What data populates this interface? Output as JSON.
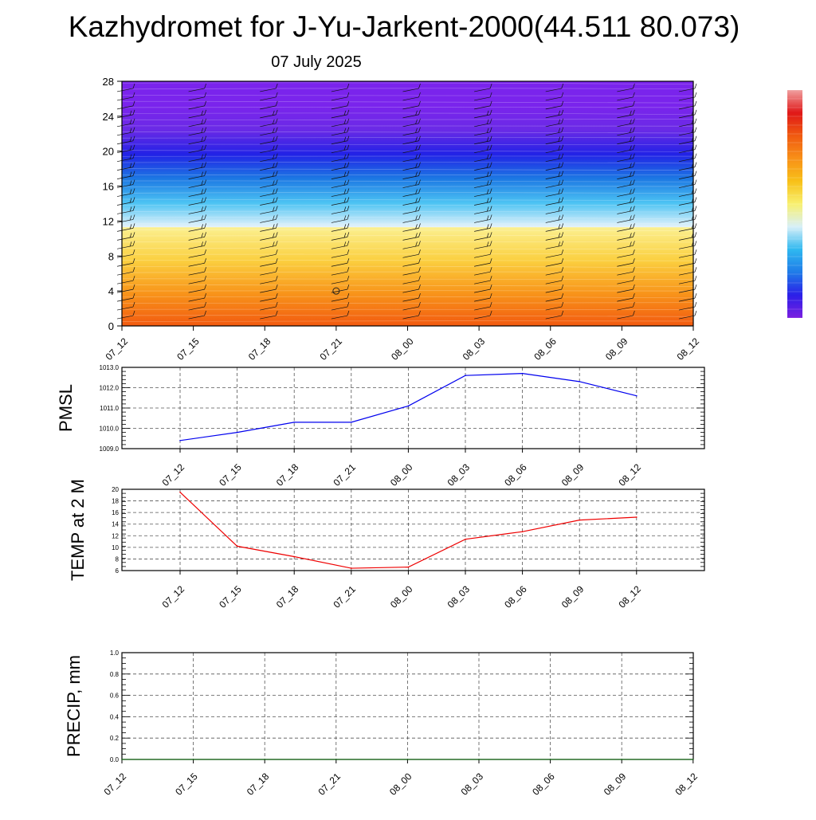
{
  "title": "Kazhydromet for J-Yu-Jarkent-2000(44.511 80.073)",
  "subtitle": "07 July 2025",
  "time_labels": [
    "07_12",
    "07_15",
    "07_18",
    "07_21",
    "08_00",
    "08_03",
    "08_06",
    "08_09",
    "08_12"
  ],
  "colors": {
    "pmsl_line": "#0000ee",
    "temp_line": "#ee0000",
    "precip_line": "#1a6b1a",
    "grid": "#555555",
    "colorbar_stops": [
      "#7b1fe0",
      "#2b1fe8",
      "#1f7be8",
      "#2fb8f0",
      "#d8f0f8",
      "#f8f070",
      "#f8c018",
      "#f89018",
      "#f05a10",
      "#e01818",
      "#f0a0a0"
    ]
  },
  "chart_data": [
    {
      "type": "heatmap",
      "name": "vertical-profile",
      "x": [
        "07_12",
        "07_15",
        "07_18",
        "07_21",
        "08_00",
        "08_03",
        "08_06",
        "08_09",
        "08_12"
      ],
      "ylim": [
        0,
        28
      ],
      "yticks": [
        0,
        4,
        8,
        12,
        16,
        20,
        24,
        28
      ],
      "bands": [
        {
          "from": 0,
          "to": 11.3,
          "colors": [
            "#f25a10",
            "#f8951a",
            "#fbd040",
            "#fbf090"
          ]
        },
        {
          "from": 11.3,
          "to": 28,
          "colors": [
            "#e6f3fb",
            "#4cc3f3",
            "#1c78e3",
            "#2222e6",
            "#6a2ae6",
            "#7a24ec",
            "#7a24ec"
          ]
        }
      ],
      "annotation": {
        "symbol": "circle",
        "x": "07_21",
        "y": 4
      },
      "wind_barbs": true,
      "colorbar": true
    },
    {
      "type": "line",
      "name": "pmsl",
      "ylabel": "PMSL",
      "categories": [
        "07_12",
        "07_15",
        "07_18",
        "07_21",
        "08_00",
        "08_03",
        "08_06",
        "08_09",
        "08_12"
      ],
      "values": [
        1009.4,
        1009.8,
        1010.3,
        1010.3,
        1011.1,
        1012.6,
        1012.7,
        1012.3,
        1011.6
      ],
      "ylim": [
        1009.0,
        1013.0
      ],
      "yticks": [
        "1009.0",
        "1010.0",
        "1011.0",
        "1012.0",
        "1013.0"
      ],
      "grid": true
    },
    {
      "type": "line",
      "name": "temp-2m",
      "ylabel": "TEMP at 2 M",
      "categories": [
        "07_12",
        "07_15",
        "07_18",
        "07_21",
        "08_00",
        "08_03",
        "08_06",
        "08_09",
        "08_12"
      ],
      "values": [
        19.5,
        10.2,
        8.4,
        6.4,
        6.6,
        11.4,
        12.7,
        14.7,
        15.2
      ],
      "ylim": [
        6,
        20
      ],
      "yticks": [
        "6",
        "8",
        "10",
        "12",
        "14",
        "16",
        "18",
        "20"
      ],
      "grid": true
    },
    {
      "type": "line",
      "name": "precip",
      "ylabel": "PRECIP, mm",
      "categories": [
        "07_12",
        "07_15",
        "07_18",
        "07_21",
        "08_00",
        "08_03",
        "08_06",
        "08_09",
        "08_12"
      ],
      "values": [
        0,
        0,
        0,
        0,
        0,
        0,
        0,
        0,
        0
      ],
      "ylim": [
        0,
        1
      ],
      "yticks": [
        "0.0",
        "0.2",
        "0.4",
        "0.6",
        "0.8",
        "1.0"
      ],
      "grid": true
    }
  ]
}
